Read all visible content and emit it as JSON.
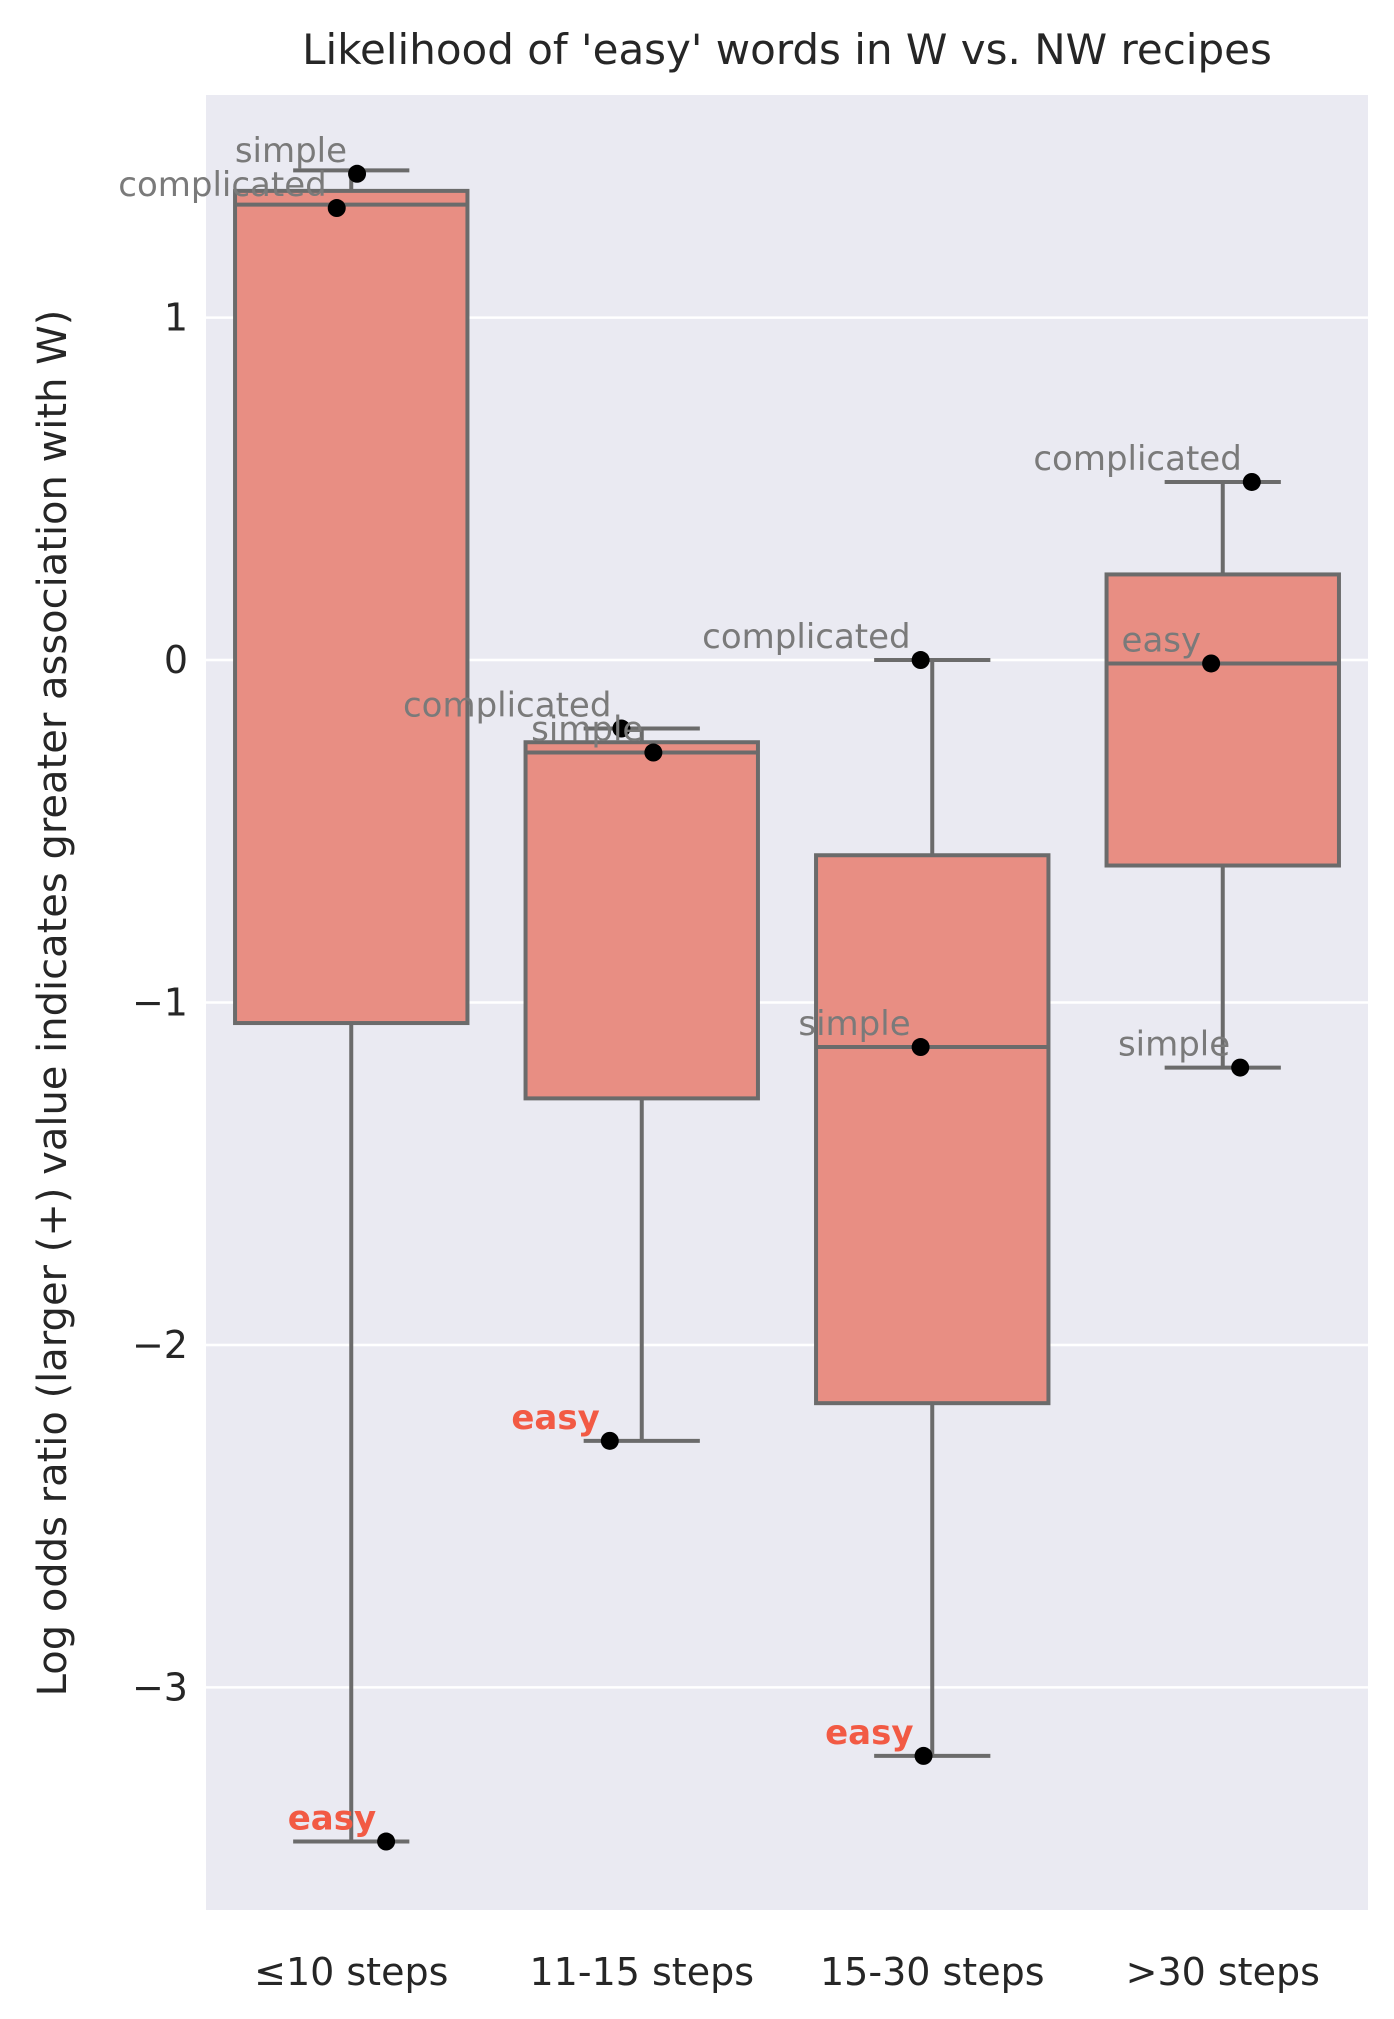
{
  "chart_data": {
    "type": "box",
    "title": "Likelihood of 'easy' words in W vs. NW recipes",
    "ylabel": "Log odds ratio (larger (+) value indicates greater association with W)",
    "xlabel": "",
    "ylim": [
      -3.65,
      1.65
    ],
    "yticks": [
      1,
      0,
      -1,
      -2,
      -3
    ],
    "ytick_labels": [
      "1",
      "0",
      "−1",
      "−2",
      "−3"
    ],
    "grid": true,
    "colors": {
      "box_fill": "#e88e83",
      "box_edge": "#6b6b6b",
      "background": "#eaeaf2",
      "highlight": "#f25a44",
      "annotation": "#7a7a7a",
      "point": "#000000"
    },
    "categories": [
      "≤10 steps",
      "11-15 steps",
      "15-30 steps",
      ">30 steps"
    ],
    "boxes": [
      {
        "q1": -1.06,
        "median": 1.33,
        "q3": 1.37,
        "whisker_low": -3.45,
        "whisker_high": 1.43
      },
      {
        "q1": -1.28,
        "median": -0.27,
        "q3": -0.24,
        "whisker_low": -2.28,
        "whisker_high": -0.2
      },
      {
        "q1": -2.17,
        "median": -1.13,
        "q3": -0.57,
        "whisker_low": -3.2,
        "whisker_high": 0.0
      },
      {
        "q1": -0.6,
        "median": -0.01,
        "q3": 0.25,
        "whisker_low": -1.19,
        "whisker_high": 0.52
      }
    ],
    "points": [
      {
        "category": 0,
        "word": "simple",
        "value": 1.42,
        "highlight": false
      },
      {
        "category": 0,
        "word": "complicated",
        "value": 1.32,
        "highlight": false
      },
      {
        "category": 0,
        "word": "easy",
        "value": -3.45,
        "highlight": true
      },
      {
        "category": 1,
        "word": "complicated",
        "value": -0.2,
        "highlight": false
      },
      {
        "category": 1,
        "word": "simple",
        "value": -0.27,
        "highlight": false
      },
      {
        "category": 1,
        "word": "easy",
        "value": -2.28,
        "highlight": true
      },
      {
        "category": 2,
        "word": "complicated",
        "value": 0.0,
        "highlight": false
      },
      {
        "category": 2,
        "word": "simple",
        "value": -1.13,
        "highlight": false
      },
      {
        "category": 2,
        "word": "easy",
        "value": -3.2,
        "highlight": true
      },
      {
        "category": 3,
        "word": "complicated",
        "value": 0.52,
        "highlight": false
      },
      {
        "category": 3,
        "word": "easy",
        "value": -0.01,
        "highlight": false
      },
      {
        "category": 3,
        "word": "simple",
        "value": -1.19,
        "highlight": false
      }
    ]
  }
}
